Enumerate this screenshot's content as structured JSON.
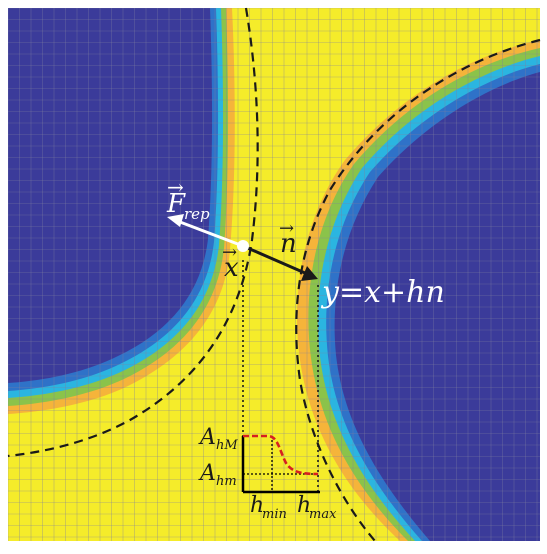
{
  "colors": {
    "background_inside": "#3b3b9a",
    "background_outside": "#f5ec2a",
    "band_light": "#f5b43a",
    "band_green": "#8bc34a",
    "band_cyan": "#2bb5e0",
    "band_blue": "#2f72c8",
    "grid_line": "#8080a0",
    "boundary_dash": "#1a1a1a",
    "force_arrow": "#ffffff",
    "normal_arrow": "#1a1a1a",
    "profile_curve": "#d62020"
  },
  "labels": {
    "force": "F",
    "force_sub": "rep",
    "position": "x",
    "normal": "n",
    "projection_equation": "y=x+hn",
    "a_high": "A",
    "a_high_sub": "hM",
    "a_low": "A",
    "a_low_sub": "hm",
    "h_min": "h",
    "h_min_sub": "min",
    "h_max": "h",
    "h_max_sub": "max"
  }
}
